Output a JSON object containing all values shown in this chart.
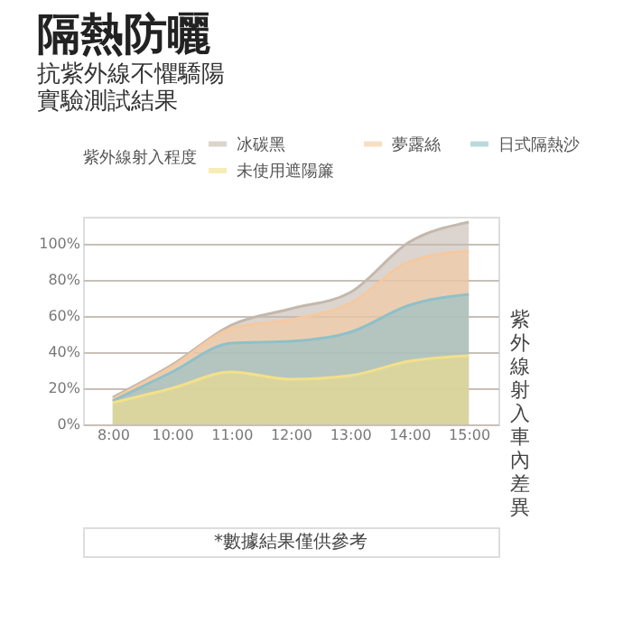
{
  "chart_data": {
    "type": "area",
    "title": "隔熱防曬",
    "subtitle": [
      "抗紫外線不懼驕陽",
      "實驗測試結果"
    ],
    "legend_title": "紫外線射入程度",
    "ylabel": "紫外線射入車內差異",
    "categories": [
      "8:00",
      "10:00",
      "11:00",
      "12:00",
      "13:00",
      "14:00",
      "15:00"
    ],
    "series": [
      {
        "name": "冰碳黑",
        "color": "#c4b8ad",
        "values": [
          15,
          33,
          55,
          64,
          73,
          101,
          112
        ]
      },
      {
        "name": "夢露絲",
        "color": "#f5c9a0",
        "values": [
          14,
          32,
          53,
          58,
          67,
          90,
          96
        ]
      },
      {
        "name": "日式隔熱沙",
        "color": "#8fc0c8",
        "values": [
          13,
          29,
          45,
          46,
          51,
          66,
          72
        ]
      },
      {
        "name": "未使用遮陽簾",
        "color": "#f3e08a",
        "values": [
          12,
          20,
          29,
          25,
          27,
          35,
          38
        ]
      }
    ],
    "ylim": [
      0,
      115
    ],
    "yticks": [
      {
        "value": 0,
        "label": "0%"
      },
      {
        "value": 20,
        "label": "20%"
      },
      {
        "value": 40,
        "label": "40%"
      },
      {
        "value": 60,
        "label": "60%"
      },
      {
        "value": 80,
        "label": "80%"
      },
      {
        "value": 100,
        "label": "100%"
      }
    ],
    "grid": "y",
    "legend": "top",
    "annotations": [
      "*數據結果僅供參考"
    ]
  }
}
